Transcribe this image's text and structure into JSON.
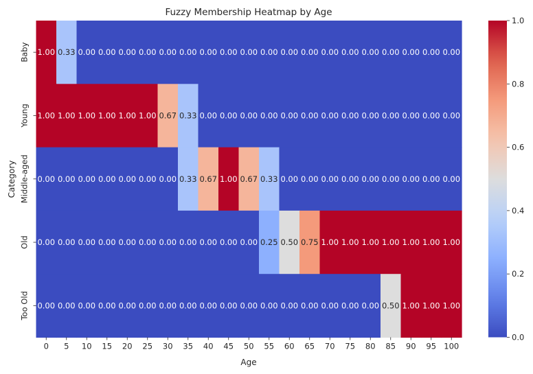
{
  "chart_data": {
    "type": "heatmap",
    "title": "Fuzzy Membership Heatmap by Age",
    "xlabel": "Age",
    "ylabel": "Category",
    "x": [
      "0",
      "5",
      "10",
      "15",
      "20",
      "25",
      "30",
      "35",
      "40",
      "45",
      "50",
      "55",
      "60",
      "65",
      "70",
      "75",
      "80",
      "85",
      "90",
      "95",
      "100"
    ],
    "y": [
      "Baby",
      "Young",
      "Middle-aged",
      "Old",
      "Too Old"
    ],
    "z": [
      [
        1.0,
        0.33,
        0.0,
        0.0,
        0.0,
        0.0,
        0.0,
        0.0,
        0.0,
        0.0,
        0.0,
        0.0,
        0.0,
        0.0,
        0.0,
        0.0,
        0.0,
        0.0,
        0.0,
        0.0,
        0.0
      ],
      [
        1.0,
        1.0,
        1.0,
        1.0,
        1.0,
        1.0,
        0.67,
        0.33,
        0.0,
        0.0,
        0.0,
        0.0,
        0.0,
        0.0,
        0.0,
        0.0,
        0.0,
        0.0,
        0.0,
        0.0,
        0.0
      ],
      [
        0.0,
        0.0,
        0.0,
        0.0,
        0.0,
        0.0,
        0.0,
        0.33,
        0.67,
        1.0,
        0.67,
        0.33,
        0.0,
        0.0,
        0.0,
        0.0,
        0.0,
        0.0,
        0.0,
        0.0,
        0.0
      ],
      [
        0.0,
        0.0,
        0.0,
        0.0,
        0.0,
        0.0,
        0.0,
        0.0,
        0.0,
        0.0,
        0.0,
        0.25,
        0.5,
        0.75,
        1.0,
        1.0,
        1.0,
        1.0,
        1.0,
        1.0,
        1.0
      ],
      [
        0.0,
        0.0,
        0.0,
        0.0,
        0.0,
        0.0,
        0.0,
        0.0,
        0.0,
        0.0,
        0.0,
        0.0,
        0.0,
        0.0,
        0.0,
        0.0,
        0.0,
        0.5,
        1.0,
        1.0,
        1.0
      ]
    ],
    "colorscale": "coolwarm",
    "zlim": [
      0,
      1
    ],
    "colorbar_ticks": [
      "0.0",
      "0.2",
      "0.4",
      "0.6",
      "0.8",
      "1.0"
    ],
    "grid": false
  }
}
